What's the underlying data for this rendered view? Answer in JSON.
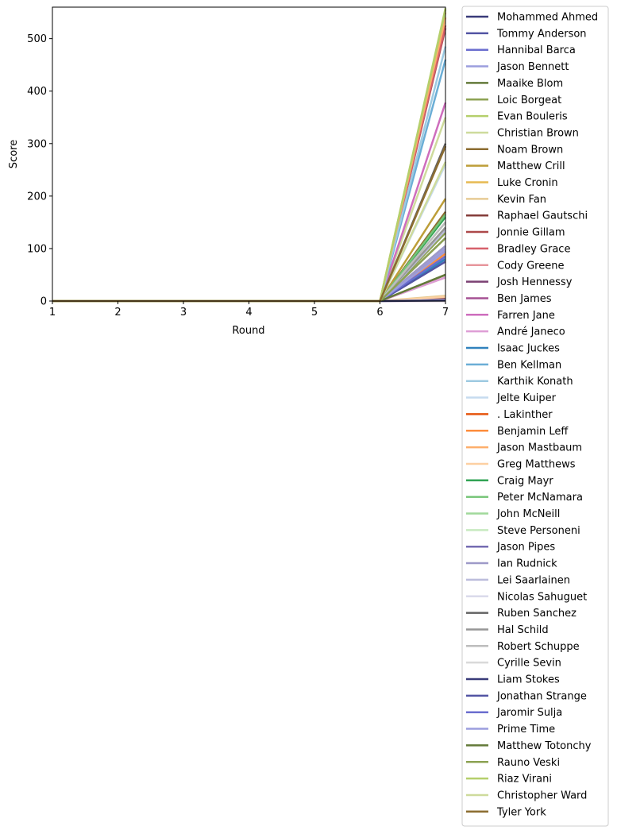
{
  "chart_data": {
    "type": "line",
    "title": "",
    "xlabel": "Round",
    "ylabel": "Score",
    "xlim": [
      1,
      7
    ],
    "ylim": [
      0,
      560
    ],
    "x": [
      1,
      2,
      3,
      4,
      5,
      6,
      7
    ],
    "xticks": [
      1,
      2,
      3,
      4,
      5,
      6,
      7
    ],
    "yticks": [
      0,
      100,
      200,
      300,
      400,
      500
    ],
    "grid": false,
    "legend_placement": "outside-right",
    "series": [
      {
        "name": "Mohammed Ahmed",
        "color": "#393b79",
        "values": [
          0,
          0,
          0,
          0,
          0,
          0,
          2
        ]
      },
      {
        "name": "Tommy Anderson",
        "color": "#5254a3",
        "values": [
          0,
          0,
          0,
          0,
          0,
          0,
          80
        ]
      },
      {
        "name": "Hannibal Barca",
        "color": "#6b6ecf",
        "values": [
          0,
          0,
          0,
          0,
          0,
          0,
          85
        ]
      },
      {
        "name": "Jason Bennett",
        "color": "#9c9ede",
        "values": [
          0,
          0,
          0,
          0,
          0,
          0,
          100
        ]
      },
      {
        "name": "Maaike Blom",
        "color": "#637939",
        "values": [
          0,
          0,
          0,
          0,
          0,
          0,
          50
        ]
      },
      {
        "name": "Loic Borgeat",
        "color": "#8ca252",
        "values": [
          0,
          0,
          0,
          0,
          0,
          0,
          130
        ]
      },
      {
        "name": "Evan Bouleris",
        "color": "#b5cf6b",
        "values": [
          0,
          0,
          0,
          0,
          0,
          0,
          558
        ]
      },
      {
        "name": "Christian Brown",
        "color": "#cedb9c",
        "values": [
          0,
          0,
          0,
          0,
          0,
          0,
          350
        ]
      },
      {
        "name": "Noam Brown",
        "color": "#8c6d31",
        "values": [
          0,
          0,
          0,
          0,
          0,
          0,
          170
        ]
      },
      {
        "name": "Matthew Crill",
        "color": "#bd9e39",
        "values": [
          0,
          0,
          0,
          0,
          0,
          0,
          195
        ]
      },
      {
        "name": "Luke Cronin",
        "color": "#e7ba52",
        "values": [
          0,
          0,
          0,
          0,
          0,
          0,
          550
        ]
      },
      {
        "name": "Kevin Fan",
        "color": "#e7cb94",
        "values": [
          0,
          0,
          0,
          0,
          0,
          0,
          10
        ]
      },
      {
        "name": "Raphael Gautschi",
        "color": "#843c39",
        "values": [
          0,
          0,
          0,
          0,
          0,
          0,
          5
        ]
      },
      {
        "name": "Jonnie Gillam",
        "color": "#ad494a",
        "values": [
          0,
          0,
          0,
          0,
          0,
          0,
          520
        ]
      },
      {
        "name": "Bradley Grace",
        "color": "#d6616b",
        "values": [
          0,
          0,
          0,
          0,
          0,
          0,
          525
        ]
      },
      {
        "name": "Cody Greene",
        "color": "#e7969c",
        "values": [
          0,
          0,
          0,
          0,
          0,
          0,
          45
        ]
      },
      {
        "name": "Josh Hennessy",
        "color": "#7b4173",
        "values": [
          0,
          0,
          0,
          0,
          0,
          0,
          3
        ]
      },
      {
        "name": "Ben James",
        "color": "#a55194",
        "values": [
          0,
          0,
          0,
          0,
          0,
          0,
          0
        ]
      },
      {
        "name": "Farren Jane",
        "color": "#ce6dbd",
        "values": [
          0,
          0,
          0,
          0,
          0,
          0,
          378
        ]
      },
      {
        "name": "André Janeco",
        "color": "#de9ed6",
        "values": [
          0,
          0,
          0,
          0,
          0,
          0,
          45
        ]
      },
      {
        "name": "Isaac Juckes",
        "color": "#3182bd",
        "values": [
          0,
          0,
          0,
          0,
          0,
          0,
          80
        ]
      },
      {
        "name": "Ben Kellman",
        "color": "#6baed6",
        "values": [
          0,
          0,
          0,
          0,
          0,
          0,
          460
        ]
      },
      {
        "name": "Karthik Konath",
        "color": "#9ecae1",
        "values": [
          0,
          0,
          0,
          0,
          0,
          0,
          485
        ]
      },
      {
        "name": "Jelte Kuiper",
        "color": "#c6dbef",
        "values": [
          0,
          0,
          0,
          0,
          0,
          0,
          260
        ]
      },
      {
        "name": ". Lakinther",
        "color": "#e6550d",
        "values": [
          0,
          0,
          0,
          0,
          0,
          0,
          95
        ]
      },
      {
        "name": "Benjamin Leff",
        "color": "#fd8d3c",
        "values": [
          0,
          0,
          0,
          0,
          0,
          0,
          90
        ]
      },
      {
        "name": "Jason Mastbaum",
        "color": "#fdae6b",
        "values": [
          0,
          0,
          0,
          0,
          0,
          0,
          540
        ]
      },
      {
        "name": "Greg Matthews",
        "color": "#fdd0a2",
        "values": [
          0,
          0,
          0,
          0,
          0,
          0,
          8
        ]
      },
      {
        "name": "Craig Mayr",
        "color": "#31a354",
        "values": [
          0,
          0,
          0,
          0,
          0,
          0,
          160
        ]
      },
      {
        "name": "Peter McNamara",
        "color": "#74c476",
        "values": [
          0,
          0,
          0,
          0,
          0,
          0,
          165
        ]
      },
      {
        "name": "John McNeill",
        "color": "#a1d99b",
        "values": [
          0,
          0,
          0,
          0,
          0,
          0,
          150
        ]
      },
      {
        "name": "Steve Personeni",
        "color": "#c7e9c0",
        "values": [
          0,
          0,
          0,
          0,
          0,
          0,
          140
        ]
      },
      {
        "name": "Jason Pipes",
        "color": "#756bb1",
        "values": [
          0,
          0,
          0,
          0,
          0,
          0,
          120
        ]
      },
      {
        "name": "Ian Rudnick",
        "color": "#9e9ac8",
        "values": [
          0,
          0,
          0,
          0,
          0,
          0,
          105
        ]
      },
      {
        "name": "Lei Saarlainen",
        "color": "#bcbddc",
        "values": [
          0,
          0,
          0,
          0,
          0,
          0,
          135
        ]
      },
      {
        "name": "Nicolas Sahuguet",
        "color": "#dadaeb",
        "values": [
          0,
          0,
          0,
          0,
          0,
          0,
          2
        ]
      },
      {
        "name": "Ruben Sanchez",
        "color": "#636363",
        "values": [
          0,
          0,
          0,
          0,
          0,
          0,
          300
        ]
      },
      {
        "name": "Hal Schild",
        "color": "#969696",
        "values": [
          0,
          0,
          0,
          0,
          0,
          0,
          140
        ]
      },
      {
        "name": "Robert Schuppe",
        "color": "#bdbdbd",
        "values": [
          0,
          0,
          0,
          0,
          0,
          0,
          150
        ]
      },
      {
        "name": "Cyrille Sevin",
        "color": "#d9d9d9",
        "values": [
          0,
          0,
          0,
          0,
          0,
          0,
          0
        ]
      },
      {
        "name": "Liam Stokes",
        "color": "#393b79",
        "values": [
          0,
          0,
          0,
          0,
          0,
          0,
          1
        ]
      },
      {
        "name": "Jonathan Strange",
        "color": "#5254a3",
        "values": [
          0,
          0,
          0,
          0,
          0,
          0,
          75
        ]
      },
      {
        "name": "Jaromir Sulja",
        "color": "#6b6ecf",
        "values": [
          0,
          0,
          0,
          0,
          0,
          0,
          85
        ]
      },
      {
        "name": "Prime Time",
        "color": "#9c9ede",
        "values": [
          0,
          0,
          0,
          0,
          0,
          0,
          95
        ]
      },
      {
        "name": "Matthew Totonchy",
        "color": "#637939",
        "values": [
          0,
          0,
          0,
          0,
          0,
          0,
          50
        ]
      },
      {
        "name": "Rauno Veski",
        "color": "#8ca252",
        "values": [
          0,
          0,
          0,
          0,
          0,
          0,
          120
        ]
      },
      {
        "name": "Riaz Virani",
        "color": "#b5cf6b",
        "values": [
          0,
          0,
          0,
          0,
          0,
          0,
          555
        ]
      },
      {
        "name": "Christopher Ward",
        "color": "#cedb9c",
        "values": [
          0,
          0,
          0,
          0,
          0,
          0,
          265
        ]
      },
      {
        "name": "Tyler York",
        "color": "#8c6d31",
        "values": [
          0,
          0,
          0,
          0,
          0,
          0,
          295
        ]
      }
    ]
  }
}
